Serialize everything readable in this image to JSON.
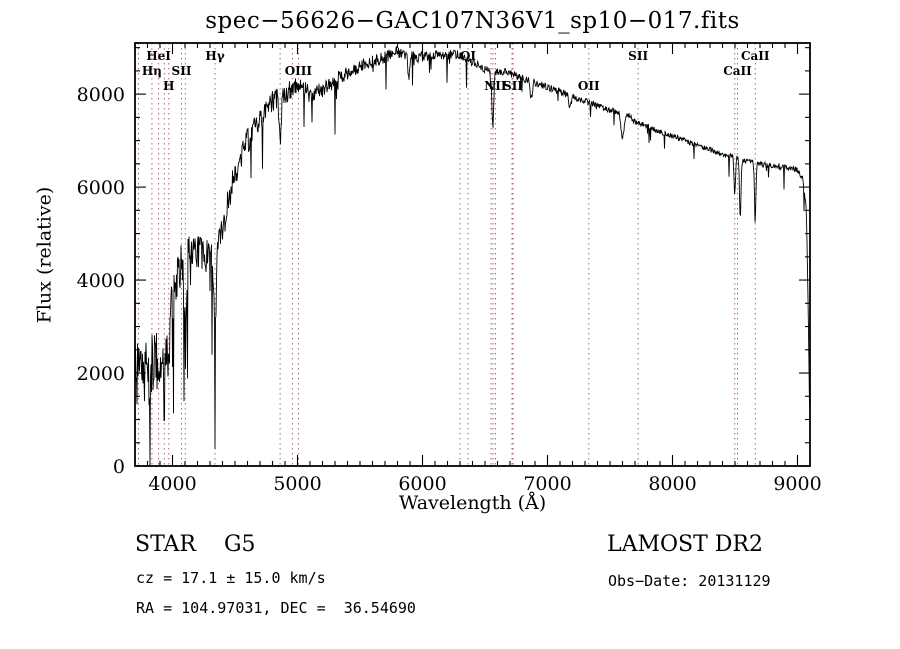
{
  "chart_data": {
    "type": "line",
    "title": "spec−56626−GAC107N36V1_sp10−017.fits",
    "xlabel": "Wavelength (Å)",
    "ylabel": "Flux (relative)",
    "xlim": [
      3700,
      9100
    ],
    "ylim": [
      0,
      9100
    ],
    "xticks": [
      4000,
      5000,
      6000,
      7000,
      8000,
      9000
    ],
    "yticks": [
      0,
      2000,
      4000,
      6000,
      8000
    ],
    "x_minor_step": 100,
    "y_minor_step": 500,
    "x_step": 4,
    "noise_seed": 12345,
    "spike_probability": 0.03,
    "line_color": "#000000",
    "marker_color": "#a86a6a",
    "grid": false,
    "legend": "none",
    "envelope": [
      [
        3700,
        1800
      ],
      [
        3740,
        2100
      ],
      [
        3780,
        2050
      ],
      [
        3820,
        2200
      ],
      [
        3860,
        2300
      ],
      [
        3900,
        2400
      ],
      [
        3950,
        2800
      ],
      [
        4000,
        3500
      ],
      [
        4050,
        4200
      ],
      [
        4100,
        4500
      ],
      [
        4150,
        4600
      ],
      [
        4200,
        4600
      ],
      [
        4250,
        4500
      ],
      [
        4300,
        4450
      ],
      [
        4350,
        4500
      ],
      [
        4400,
        5100
      ],
      [
        4450,
        5700
      ],
      [
        4500,
        6300
      ],
      [
        4550,
        6700
      ],
      [
        4600,
        7000
      ],
      [
        4650,
        7200
      ],
      [
        4700,
        7400
      ],
      [
        4750,
        7650
      ],
      [
        4800,
        7850
      ],
      [
        4850,
        7950
      ],
      [
        4900,
        8000
      ],
      [
        4950,
        8100
      ],
      [
        5000,
        8200
      ],
      [
        5050,
        8100
      ],
      [
        5100,
        8000
      ],
      [
        5150,
        8050
      ],
      [
        5200,
        8100
      ],
      [
        5300,
        8300
      ],
      [
        5400,
        8450
      ],
      [
        5500,
        8600
      ],
      [
        5600,
        8700
      ],
      [
        5700,
        8800
      ],
      [
        5800,
        8900
      ],
      [
        5900,
        8850
      ],
      [
        6000,
        8800
      ],
      [
        6100,
        8850
      ],
      [
        6200,
        8850
      ],
      [
        6300,
        8850
      ],
      [
        6400,
        8700
      ],
      [
        6500,
        8550
      ],
      [
        6600,
        8500
      ],
      [
        6700,
        8450
      ],
      [
        6800,
        8350
      ],
      [
        6900,
        8250
      ],
      [
        7000,
        8150
      ],
      [
        7100,
        8050
      ],
      [
        7200,
        7950
      ],
      [
        7300,
        7850
      ],
      [
        7400,
        7750
      ],
      [
        7500,
        7650
      ],
      [
        7600,
        7600
      ],
      [
        7650,
        7550
      ],
      [
        7700,
        7400
      ],
      [
        7800,
        7300
      ],
      [
        7900,
        7200
      ],
      [
        8000,
        7100
      ],
      [
        8100,
        7000
      ],
      [
        8200,
        6900
      ],
      [
        8300,
        6800
      ],
      [
        8400,
        6700
      ],
      [
        8500,
        6650
      ],
      [
        8600,
        6550
      ],
      [
        8700,
        6500
      ],
      [
        8800,
        6450
      ],
      [
        8900,
        6420
      ],
      [
        8960,
        6400
      ],
      [
        9000,
        6380
      ],
      [
        9040,
        6200
      ],
      [
        9070,
        5600
      ],
      [
        9085,
        3500
      ],
      [
        9100,
        500
      ]
    ],
    "noise_profile": [
      [
        3700,
        700
      ],
      [
        3800,
        650
      ],
      [
        3900,
        600
      ],
      [
        4000,
        520
      ],
      [
        4100,
        430
      ],
      [
        4300,
        380
      ],
      [
        4500,
        300
      ],
      [
        4700,
        250
      ],
      [
        4900,
        220
      ],
      [
        5100,
        180
      ],
      [
        5400,
        150
      ],
      [
        5700,
        130
      ],
      [
        6000,
        110
      ],
      [
        6300,
        100
      ],
      [
        6600,
        90
      ],
      [
        7000,
        75
      ],
      [
        7400,
        65
      ],
      [
        7800,
        60
      ],
      [
        8300,
        55
      ],
      [
        8700,
        60
      ],
      [
        9000,
        60
      ]
    ],
    "absorption_lines": [
      [
        3820,
        800,
        6
      ],
      [
        3889,
        900,
        6
      ],
      [
        3934,
        1200,
        7
      ],
      [
        3970,
        1200,
        7
      ],
      [
        4102,
        1300,
        9
      ],
      [
        4340,
        1500,
        9
      ],
      [
        4861,
        900,
        9
      ],
      [
        5890,
        500,
        8
      ],
      [
        6563,
        1200,
        8
      ],
      [
        6870,
        350,
        9
      ],
      [
        7180,
        250,
        9
      ],
      [
        7600,
        550,
        12
      ],
      [
        8498,
        800,
        6
      ],
      [
        8542,
        1300,
        6
      ],
      [
        8662,
        1100,
        6
      ]
    ],
    "line_markers": [
      {
        "label": "HeI",
        "wavelength": 3889,
        "row": 0
      },
      {
        "label": "Hη",
        "wavelength": 3835,
        "row": 1
      },
      {
        "label": "H",
        "wavelength": 3970,
        "row": 2
      },
      {
        "label": "SII",
        "wavelength": 4072,
        "row": 1
      },
      {
        "label": "Hγ",
        "wavelength": 4340,
        "row": 0
      },
      {
        "label": "OIII",
        "wavelength": 5007,
        "row": 1
      },
      {
        "label": "OI",
        "wavelength": 6364,
        "row": 0
      },
      {
        "label": "NII",
        "wavelength": 6583,
        "row": 2
      },
      {
        "label": "SII",
        "wavelength": 6724,
        "row": 2
      },
      {
        "label": "OII",
        "wavelength": 7330,
        "row": 2
      },
      {
        "label": "SII",
        "wavelength": 7725,
        "row": 0
      },
      {
        "label": "CaII",
        "wavelength": 8520,
        "row": 1
      },
      {
        "label": "CaII",
        "wavelength": 8662,
        "row": 0
      }
    ],
    "unlabeled_markers": [
      3727,
      3934,
      4102,
      4861,
      4959,
      6300,
      6548,
      6563,
      6716,
      8498
    ]
  },
  "annotations": {
    "class_label": "STAR    G5",
    "survey": "LAMOST DR2",
    "cz": "cz = 17.1 ± 15.0 km/s",
    "obs_date": "Obs−Date: 20131129",
    "coords": "RA = 104.97031, DEC =  36.54690"
  }
}
